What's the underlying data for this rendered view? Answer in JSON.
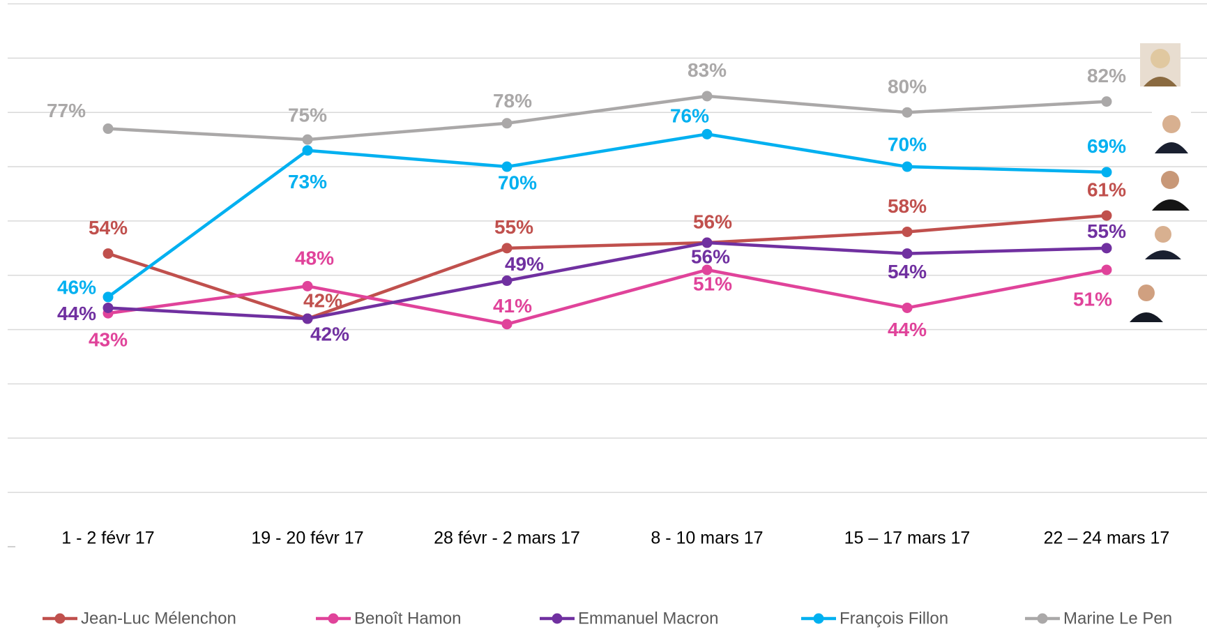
{
  "chart_data": {
    "type": "line",
    "categories": [
      "1 - 2 févr 17",
      "19 - 20 févr 17",
      "28 févr - 2 mars 17",
      "8 - 10 mars 17",
      "15 – 17 mars 17",
      "22 – 24 mars 17"
    ],
    "series": [
      {
        "name": "Jean-Luc Mélenchon",
        "color": "#c0504d",
        "values": [
          54,
          42,
          55,
          56,
          58,
          61
        ],
        "value_labels": [
          "54%",
          "42%",
          "55%",
          "56%",
          "58%",
          "61%"
        ]
      },
      {
        "name": "Benoît Hamon",
        "color": "#e0439a",
        "values": [
          43,
          48,
          41,
          51,
          44,
          51
        ],
        "value_labels": [
          "43%",
          "48%",
          "41%",
          "51%",
          "44%",
          "51%"
        ]
      },
      {
        "name": "Emmanuel Macron",
        "color": "#7030a0",
        "values": [
          44,
          42,
          49,
          56,
          54,
          55
        ],
        "value_labels": [
          "44%",
          "42%",
          "49%",
          "56%",
          "54%",
          "55%"
        ]
      },
      {
        "name": "François Fillon",
        "color": "#00b0f0",
        "values": [
          46,
          73,
          70,
          76,
          70,
          69
        ],
        "value_labels": [
          "46%",
          "73%",
          "70%",
          "76%",
          "70%",
          "69%"
        ]
      },
      {
        "name": "Marine Le Pen",
        "color": "#aaa8a8",
        "values": [
          77,
          75,
          78,
          83,
          80,
          82
        ],
        "value_labels": [
          "77%",
          "75%",
          "78%",
          "83%",
          "80%",
          "82%"
        ]
      }
    ],
    "ylim": [
      0,
      100
    ],
    "yticks": [
      10,
      20,
      30,
      40,
      50,
      60,
      70,
      80,
      90,
      100
    ],
    "grid": true,
    "legend": "bottom"
  }
}
